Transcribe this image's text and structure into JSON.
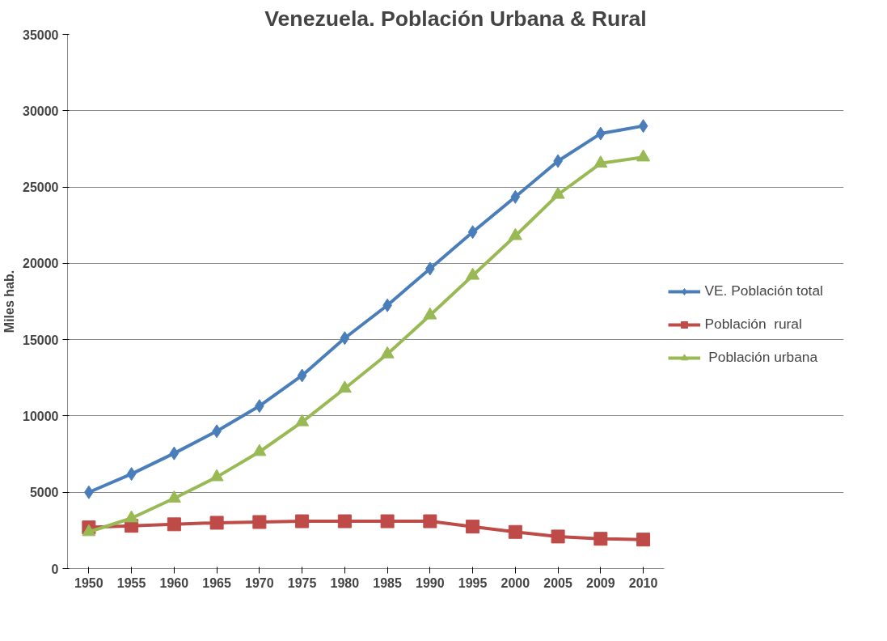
{
  "chart_data": {
    "type": "line",
    "title": "Venezuela. Población Urbana & Rural",
    "ylabel": "Miles hab.",
    "categories": [
      "1950",
      "1955",
      "1960",
      "1965",
      "1970",
      "1975",
      "1980",
      "1985",
      "1990",
      "1995",
      "2000",
      "2005",
      "2009",
      "2010"
    ],
    "ylim": [
      0,
      35000
    ],
    "yticks": [
      0,
      5000,
      10000,
      15000,
      20000,
      25000,
      30000,
      35000
    ],
    "grid": "y",
    "legend": "right",
    "series": [
      {
        "name": "VE. Población total",
        "color": "#4a7ebb",
        "marker": "diamond",
        "values": [
          5000,
          6200,
          7550,
          9000,
          10650,
          12650,
          15100,
          17250,
          19650,
          22050,
          24350,
          26700,
          28500,
          29000
        ]
      },
      {
        "name": "Población  rural",
        "color": "#be4b48",
        "marker": "square",
        "values": [
          2700,
          2800,
          2900,
          3000,
          3050,
          3100,
          3100,
          3100,
          3100,
          2750,
          2400,
          2100,
          1950,
          1900
        ]
      },
      {
        "name": " Población urbana",
        "color": "#98b954",
        "marker": "triangle",
        "values": [
          2400,
          3300,
          4600,
          6000,
          7650,
          9600,
          11800,
          14050,
          16600,
          19200,
          21800,
          24500,
          26550,
          26950
        ]
      }
    ]
  }
}
